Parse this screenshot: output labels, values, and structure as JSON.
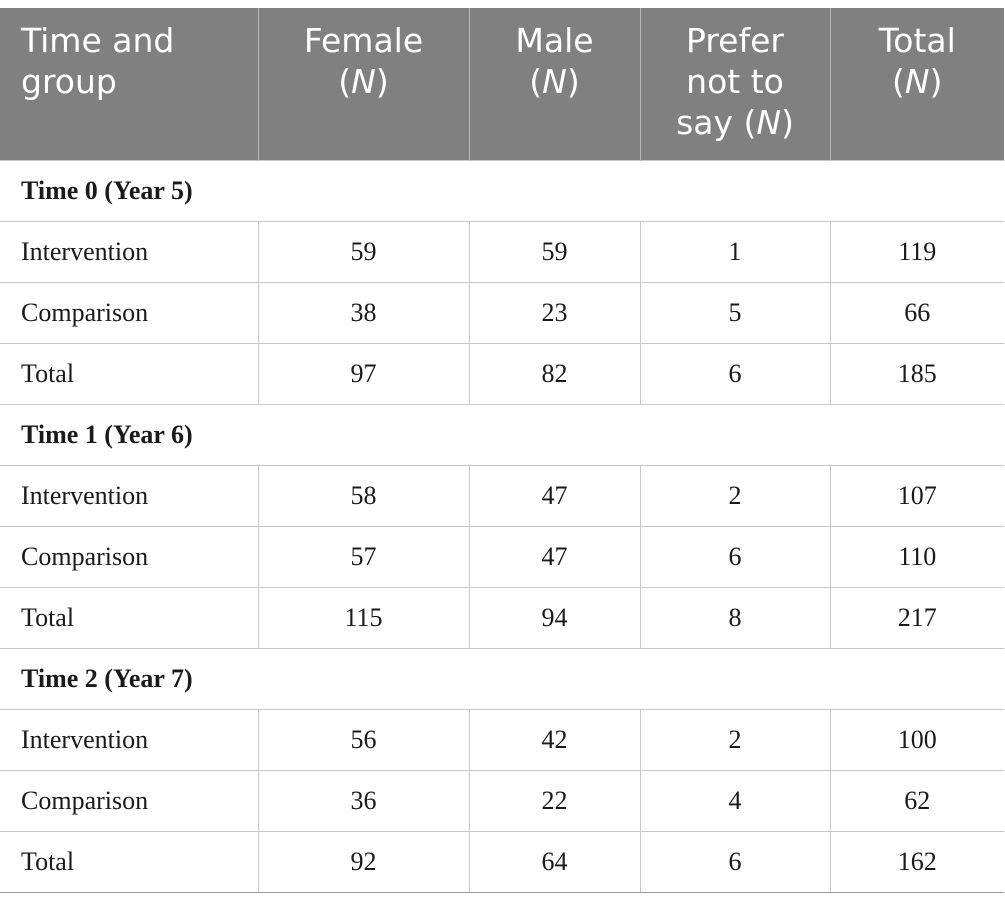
{
  "table": {
    "headers": {
      "group": [
        "Time and",
        "group"
      ],
      "female": {
        "line1": "Female",
        "n": "N"
      },
      "male": {
        "line1": "Male",
        "n": "N"
      },
      "prefer": {
        "line1": "Prefer",
        "line2": "not to",
        "line3": "say (",
        "n": "N"
      },
      "total": {
        "line1": "Total",
        "n": "N"
      }
    },
    "sections": [
      {
        "title": "Time 0 (Year 5)",
        "rows": [
          {
            "group": "Intervention",
            "female": "59",
            "male": "59",
            "prefer": "1",
            "total": "119"
          },
          {
            "group": "Comparison",
            "female": "38",
            "male": "23",
            "prefer": "5",
            "total": "66"
          },
          {
            "group": "Total",
            "female": "97",
            "male": "82",
            "prefer": "6",
            "total": "185"
          }
        ]
      },
      {
        "title": "Time 1 (Year 6)",
        "rows": [
          {
            "group": "Intervention",
            "female": "58",
            "male": "47",
            "prefer": "2",
            "total": "107"
          },
          {
            "group": "Comparison",
            "female": "57",
            "male": "47",
            "prefer": "6",
            "total": "110"
          },
          {
            "group": "Total",
            "female": "115",
            "male": "94",
            "prefer": "8",
            "total": "217"
          }
        ]
      },
      {
        "title": "Time 2 (Year 7)",
        "rows": [
          {
            "group": "Intervention",
            "female": "56",
            "male": "42",
            "prefer": "2",
            "total": "100"
          },
          {
            "group": "Comparison",
            "female": "36",
            "male": "22",
            "prefer": "4",
            "total": "62"
          },
          {
            "group": "Total",
            "female": "92",
            "male": "64",
            "prefer": "6",
            "total": "162"
          }
        ]
      }
    ]
  },
  "colors": {
    "header_bg": "#808080",
    "header_text": "#ffffff",
    "grid": "#c8c8c8"
  }
}
